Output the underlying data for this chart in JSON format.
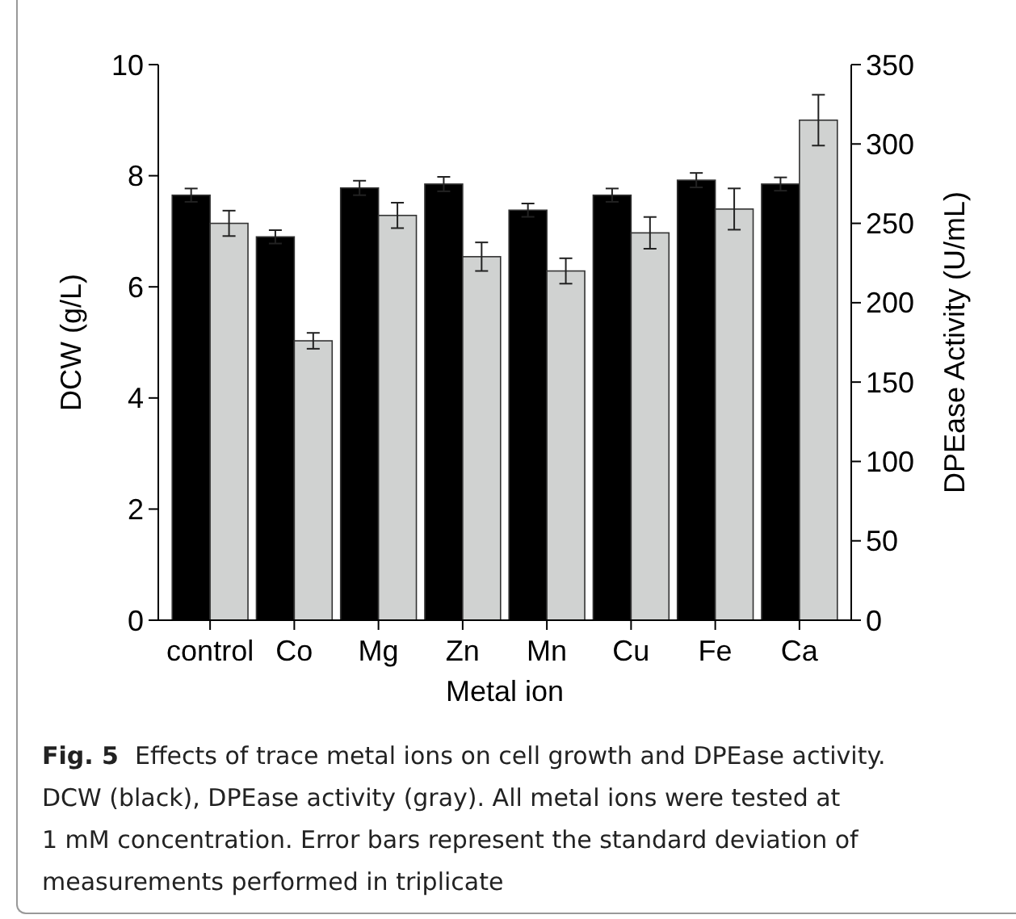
{
  "chart_data": {
    "type": "bar",
    "xlabel": "Metal ion",
    "ylabel": "DCW (g/L)",
    "y2label": "DPEase Activity (U/mL)",
    "categories": [
      "control",
      "Co",
      "Mg",
      "Zn",
      "Mn",
      "Cu",
      "Fe",
      "Ca"
    ],
    "series": [
      {
        "color": "#000000",
        "values": [
          7.65,
          6.9,
          7.78,
          7.85,
          7.38,
          7.65,
          7.92,
          7.85
        ],
        "errors": [
          0.12,
          0.12,
          0.13,
          0.13,
          0.12,
          0.12,
          0.13,
          0.12
        ]
      },
      {
        "color": "#d0d2d1",
        "axis": "y2",
        "values": [
          250,
          176,
          255,
          229,
          220,
          244,
          259,
          315
        ],
        "errors": [
          8,
          5,
          8,
          9,
          8,
          10,
          13,
          16
        ]
      }
    ],
    "ylim": [
      0,
      10
    ],
    "yticks": [
      0,
      2,
      4,
      6,
      8,
      10
    ],
    "y2lim": [
      0,
      350
    ],
    "y2ticks": [
      0,
      50,
      100,
      150,
      200,
      250,
      300,
      350
    ],
    "grid": false,
    "annotations": [
      "Fig. 5",
      "Effects of trace metal ions on cell growth and DPEase activity.",
      "DCW (black), DPEase activity (gray). All metal ions were tested at",
      "1 mM concentration. Error bars represent the standard deviation of",
      "measurements performed in triplicate"
    ]
  }
}
